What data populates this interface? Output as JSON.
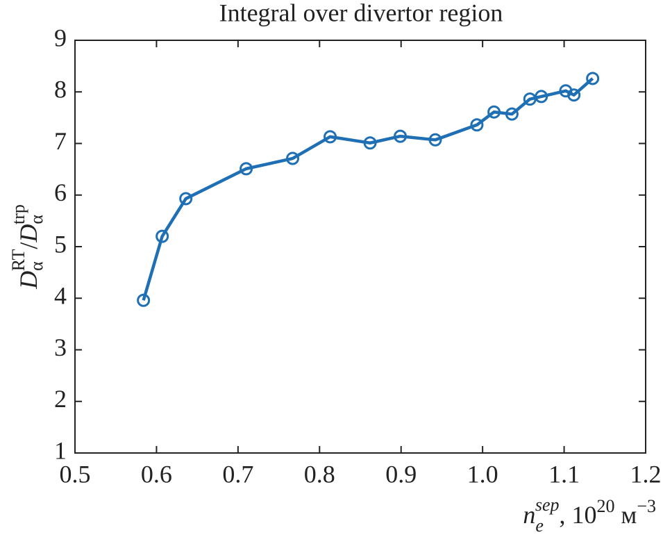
{
  "chart_data": {
    "type": "line",
    "title": "Integral over divertor region",
    "xlabel": {
      "symbol": "n",
      "sub": "e",
      "sup": "sep",
      "unit": ", 10",
      "unit_exp": "20",
      "unit_name": " м",
      "unit_name_exp": "−3"
    },
    "ylabel": {
      "num": "D",
      "num_sub": "α",
      "num_sup": "RT",
      "slash": "/",
      "den": "D",
      "den_sub": "α",
      "den_sup": "trp"
    },
    "series": [
      {
        "color": "#1f6fb4",
        "x": [
          0.584,
          0.607,
          0.636,
          0.71,
          0.767,
          0.813,
          0.862,
          0.899,
          0.942,
          0.993,
          1.014,
          1.036,
          1.058,
          1.072,
          1.102,
          1.112,
          1.135
        ],
        "values": [
          3.96,
          5.2,
          5.93,
          6.51,
          6.71,
          7.13,
          7.01,
          7.14,
          7.07,
          7.36,
          7.61,
          7.57,
          7.86,
          7.91,
          8.02,
          7.94,
          8.26
        ]
      }
    ],
    "xlim": [
      0.5,
      1.2
    ],
    "ylim": [
      1,
      9
    ],
    "xticks": [
      0.5,
      0.6,
      0.7,
      0.8,
      0.9,
      {
        "value": 1,
        "label": "1.0"
      },
      1.1,
      1.2
    ],
    "yticks": [
      1,
      2,
      3,
      4,
      5,
      6,
      7,
      8,
      9
    ]
  }
}
